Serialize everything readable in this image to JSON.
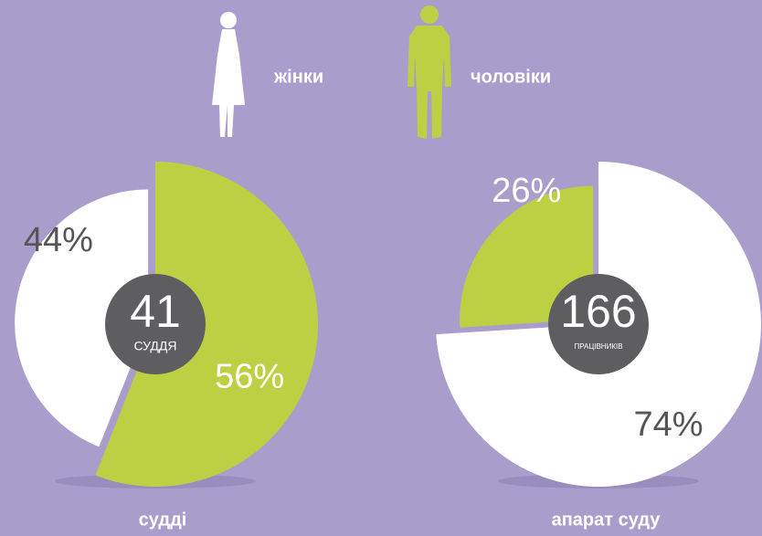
{
  "legend": [
    {
      "name": "жінки",
      "color": "#ffffff"
    },
    {
      "name": "чоловіки",
      "color": "#bcd044"
    }
  ],
  "chart_data": [
    {
      "type": "pie",
      "title": "судді",
      "values": [
        44,
        56
      ],
      "value_labels": [
        "44%",
        "56%"
      ],
      "total": 41,
      "total_label": "СУДДЯ",
      "clockwise": false
    },
    {
      "type": "pie",
      "title": "апарат суду",
      "values": [
        74,
        26
      ],
      "value_labels": [
        "74%",
        "26%"
      ],
      "total": 166,
      "total_label": "ПРАЦІВНИКІВ",
      "clockwise": true
    }
  ]
}
